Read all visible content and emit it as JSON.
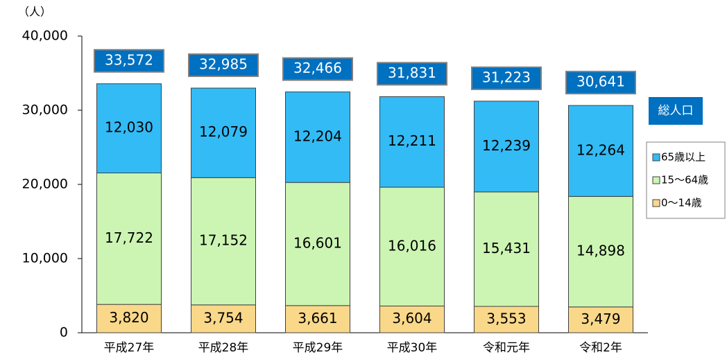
{
  "chart_data": {
    "type": "stacked_bar",
    "y_unit": "（人）",
    "categories": [
      "平成27年",
      "平成28年",
      "平成29年",
      "平成30年",
      "令和元年",
      "令和2年"
    ],
    "series": [
      {
        "name": "0～14歳",
        "color": "#fad88a",
        "values": [
          3820,
          3754,
          3661,
          3604,
          3553,
          3479
        ],
        "value_labels": [
          "3,820",
          "3,754",
          "3,661",
          "3,604",
          "3,553",
          "3,479"
        ]
      },
      {
        "name": "15～64歳",
        "color": "#ccf5b3",
        "values": [
          17722,
          17152,
          16601,
          16016,
          15431,
          14898
        ],
        "value_labels": [
          "17,722",
          "17,152",
          "16,601",
          "16,016",
          "15,431",
          "14,898"
        ]
      },
      {
        "name": "65歳以上",
        "color": "#33bbf5",
        "values": [
          12030,
          12079,
          12204,
          12211,
          12239,
          12264
        ],
        "value_labels": [
          "12,030",
          "12,079",
          "12,204",
          "12,211",
          "12,239",
          "12,264"
        ]
      }
    ],
    "totals": [
      33572,
      32985,
      32466,
      31831,
      31223,
      30641
    ],
    "total_labels": [
      "33,572",
      "32,985",
      "32,466",
      "31,831",
      "31,223",
      "30,641"
    ],
    "total_name": "総人口",
    "ylim": [
      0,
      40000
    ],
    "yticks": [
      0,
      {
        "value": 10000,
        "label": "10,000"
      },
      {
        "value": 20000,
        "label": "20,000"
      },
      {
        "value": 30000,
        "label": "30,000"
      },
      {
        "value": 40000,
        "label": "40,000"
      }
    ],
    "grid": false
  }
}
